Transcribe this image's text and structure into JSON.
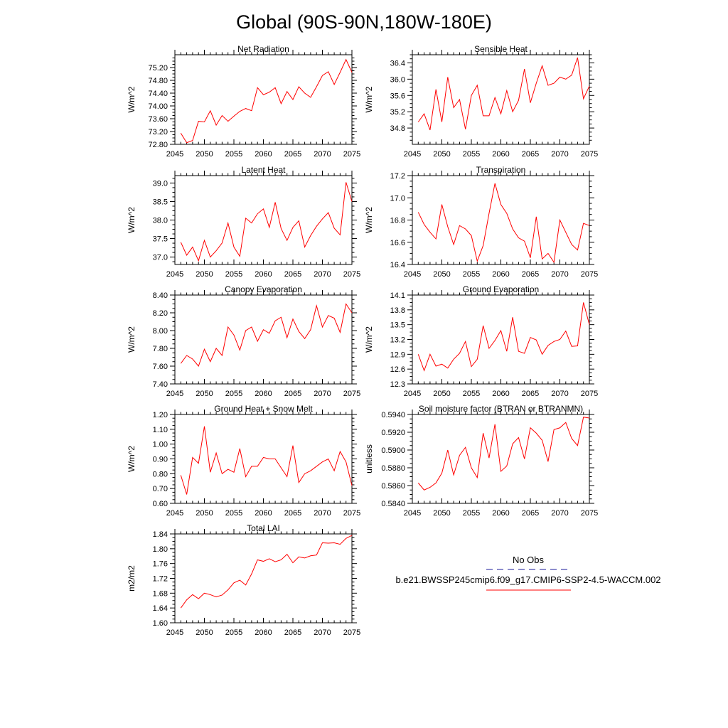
{
  "title": "Global (90S-90N,180W-180E)",
  "colors": {
    "series": "#ff0000",
    "obs": "#1a1a99",
    "axis": "#000000"
  },
  "legend": {
    "obs_label": "No Obs",
    "case_label": "b.e21.BWSSP245cmip6.f09_g17.CMIP6-SSP2-4.5-WACCM.002"
  },
  "chart_data": [
    {
      "type": "line",
      "title": "Net Radiation",
      "ylabel": "W/m^2",
      "xlim": [
        2045,
        2075
      ],
      "ylim": [
        72.8,
        75.6
      ],
      "xticks": [
        "2045",
        "2050",
        "2055",
        "2060",
        "2065",
        "2070",
        "2075"
      ],
      "yticks": [
        "72.80",
        "73.20",
        "73.60",
        "74.00",
        "74.40",
        "74.80",
        "75.20"
      ],
      "x_start": 2046,
      "values": [
        73.15,
        72.85,
        72.92,
        73.52,
        73.5,
        73.85,
        73.4,
        73.7,
        73.52,
        73.68,
        73.83,
        73.92,
        73.85,
        74.57,
        74.35,
        74.43,
        74.57,
        74.07,
        74.45,
        74.2,
        74.6,
        74.4,
        74.27,
        74.6,
        74.95,
        75.07,
        74.67,
        75.05,
        75.45,
        75.05
      ]
    },
    {
      "type": "line",
      "title": "Sensible Heat",
      "ylabel": "W/m^2",
      "xlim": [
        2045,
        2075
      ],
      "ylim": [
        34.4,
        36.6
      ],
      "xticks": [
        "2045",
        "2050",
        "2055",
        "2060",
        "2065",
        "2070",
        "2075"
      ],
      "yticks": [
        "34.8",
        "35.2",
        "35.6",
        "36.0",
        "36.4"
      ],
      "x_start": 2046,
      "values": [
        34.95,
        35.15,
        34.75,
        35.75,
        34.95,
        36.05,
        35.3,
        35.5,
        34.77,
        35.6,
        35.85,
        35.1,
        35.1,
        35.55,
        35.15,
        35.72,
        35.2,
        35.48,
        36.25,
        35.42,
        35.9,
        36.33,
        35.85,
        35.9,
        36.05,
        36.0,
        36.1,
        36.53,
        35.52,
        35.83
      ]
    },
    {
      "type": "line",
      "title": "Latent Heat",
      "ylabel": "W/m^2",
      "xlim": [
        2045,
        2075
      ],
      "ylim": [
        36.8,
        39.2
      ],
      "xticks": [
        "2045",
        "2050",
        "2055",
        "2060",
        "2065",
        "2070",
        "2075"
      ],
      "yticks": [
        "37.0",
        "37.5",
        "38.0",
        "38.5",
        "39.0"
      ],
      "x_start": 2046,
      "values": [
        37.4,
        37.05,
        37.27,
        36.9,
        37.45,
        37.0,
        37.17,
        37.38,
        37.92,
        37.27,
        37.02,
        38.05,
        37.92,
        38.17,
        38.3,
        37.8,
        38.48,
        37.77,
        37.45,
        37.8,
        37.98,
        37.27,
        37.58,
        37.83,
        38.03,
        38.2,
        37.78,
        37.6,
        39.02,
        38.5
      ]
    },
    {
      "type": "line",
      "title": "Transpiration",
      "ylabel": "W/m^2",
      "xlim": [
        2045,
        2075
      ],
      "ylim": [
        16.4,
        17.2
      ],
      "xticks": [
        "2045",
        "2050",
        "2055",
        "2060",
        "2065",
        "2070",
        "2075"
      ],
      "yticks": [
        "16.4",
        "16.6",
        "16.8",
        "17.0",
        "17.2"
      ],
      "x_start": 2046,
      "values": [
        16.87,
        16.76,
        16.69,
        16.63,
        16.94,
        16.74,
        16.58,
        16.75,
        16.72,
        16.66,
        16.43,
        16.57,
        16.86,
        17.13,
        16.94,
        16.86,
        16.72,
        16.64,
        16.61,
        16.46,
        16.83,
        16.45,
        16.5,
        16.42,
        16.8,
        16.69,
        16.58,
        16.53,
        16.77,
        16.75
      ]
    },
    {
      "type": "line",
      "title": "Canopy Evaporation",
      "ylabel": "W/m^2",
      "xlim": [
        2045,
        2075
      ],
      "ylim": [
        7.4,
        8.4
      ],
      "xticks": [
        "2045",
        "2050",
        "2055",
        "2060",
        "2065",
        "2070",
        "2075"
      ],
      "yticks": [
        "7.40",
        "7.60",
        "7.80",
        "8.00",
        "8.20",
        "8.40"
      ],
      "x_start": 2046,
      "values": [
        7.63,
        7.72,
        7.68,
        7.6,
        7.79,
        7.65,
        7.8,
        7.72,
        8.04,
        7.95,
        7.78,
        8.0,
        8.04,
        7.88,
        8.01,
        7.97,
        8.11,
        8.15,
        7.92,
        8.13,
        7.99,
        7.91,
        8.01,
        8.28,
        8.04,
        8.17,
        8.14,
        7.98,
        8.3,
        8.2
      ]
    },
    {
      "type": "line",
      "title": "Ground Evaporation",
      "ylabel": "W/m^2",
      "xlim": [
        2045,
        2075
      ],
      "ylim": [
        12.3,
        14.1
      ],
      "xticks": [
        "2045",
        "2050",
        "2055",
        "2060",
        "2065",
        "2070",
        "2075"
      ],
      "yticks": [
        "12.3",
        "12.6",
        "12.9",
        "13.2",
        "13.5",
        "13.8",
        "14.1"
      ],
      "x_start": 2046,
      "values": [
        12.9,
        12.57,
        12.9,
        12.66,
        12.7,
        12.62,
        12.8,
        12.92,
        13.16,
        12.65,
        12.8,
        13.48,
        13.02,
        13.18,
        13.38,
        12.96,
        13.65,
        12.96,
        12.92,
        13.24,
        13.19,
        12.9,
        13.08,
        13.16,
        13.2,
        13.37,
        13.06,
        13.07,
        13.95,
        13.5
      ]
    },
    {
      "type": "line",
      "title": "Ground Heat + Snow Melt",
      "ylabel": "W/m^2",
      "xlim": [
        2045,
        2075
      ],
      "ylim": [
        0.6,
        1.2
      ],
      "xticks": [
        "2045",
        "2050",
        "2055",
        "2060",
        "2065",
        "2070",
        "2075"
      ],
      "yticks": [
        "0.60",
        "0.70",
        "0.80",
        "0.90",
        "1.00",
        "1.10",
        "1.20"
      ],
      "x_start": 2046,
      "values": [
        0.79,
        0.66,
        0.91,
        0.87,
        1.12,
        0.81,
        0.94,
        0.8,
        0.83,
        0.81,
        0.97,
        0.78,
        0.85,
        0.85,
        0.91,
        0.9,
        0.9,
        0.84,
        0.78,
        0.99,
        0.74,
        0.8,
        0.82,
        0.85,
        0.88,
        0.9,
        0.82,
        0.95,
        0.88,
        0.72
      ]
    },
    {
      "type": "line",
      "title": "Soil moisture factor (BTRAN or BTRANMN)",
      "ylabel": "unitless",
      "xlim": [
        2045,
        2075
      ],
      "ylim": [
        0.584,
        0.594
      ],
      "xticks": [
        "2045",
        "2050",
        "2055",
        "2060",
        "2065",
        "2070",
        "2075"
      ],
      "yticks": [
        "0.5840",
        "0.5860",
        "0.5880",
        "0.5900",
        "0.5920",
        "0.5940"
      ],
      "x_start": 2046,
      "values": [
        0.5863,
        0.5855,
        0.5858,
        0.5863,
        0.5874,
        0.59,
        0.5872,
        0.5894,
        0.5903,
        0.588,
        0.5869,
        0.5919,
        0.5891,
        0.5929,
        0.5876,
        0.5882,
        0.5907,
        0.5914,
        0.589,
        0.5925,
        0.5919,
        0.5911,
        0.5887,
        0.5923,
        0.5925,
        0.5931,
        0.5913,
        0.5905,
        0.5937,
        0.5936
      ]
    },
    {
      "type": "line",
      "title": "Total LAI",
      "ylabel": "m2/m2",
      "xlim": [
        2045,
        2075
      ],
      "ylim": [
        1.6,
        1.84
      ],
      "xticks": [
        "2045",
        "2050",
        "2055",
        "2060",
        "2065",
        "2070",
        "2075"
      ],
      "yticks": [
        "1.60",
        "1.64",
        "1.68",
        "1.72",
        "1.76",
        "1.80",
        "1.84"
      ],
      "x_start": 2046,
      "values": [
        1.64,
        1.662,
        1.676,
        1.665,
        1.68,
        1.676,
        1.67,
        1.675,
        1.689,
        1.708,
        1.715,
        1.702,
        1.732,
        1.77,
        1.766,
        1.773,
        1.765,
        1.77,
        1.785,
        1.762,
        1.778,
        1.775,
        1.781,
        1.783,
        1.816,
        1.815,
        1.816,
        1.812,
        1.828,
        1.836
      ]
    }
  ]
}
